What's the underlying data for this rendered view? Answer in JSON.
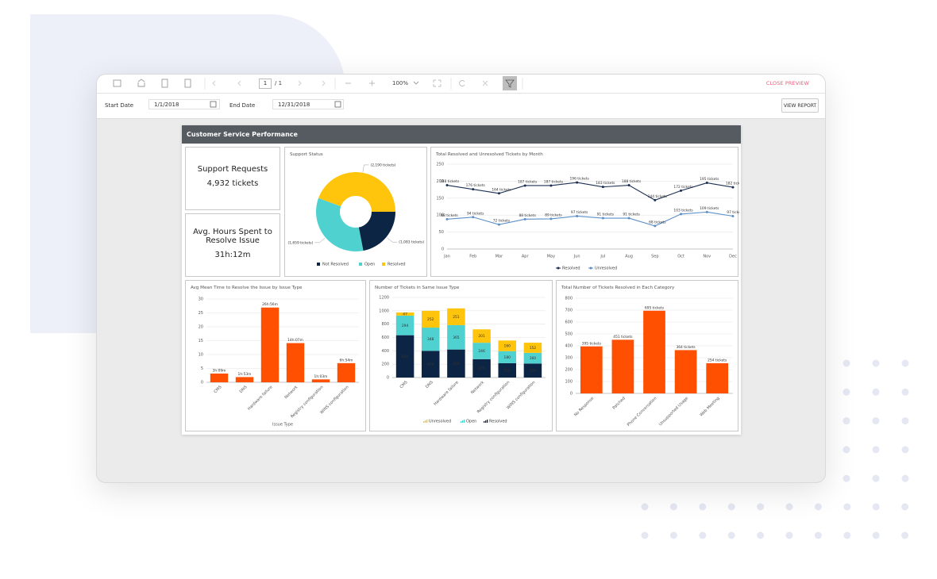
{
  "toolbar": {
    "page": "1",
    "page_count": "/ 1",
    "zoom": "100%",
    "close": "CLOSE PREVIEW"
  },
  "parameters": {
    "start_label": "Start Date",
    "start_value": "1/1/2018",
    "end_label": "End Date",
    "end_value": "12/31/2018",
    "button": "VIEW REPORT"
  },
  "report": {
    "title": "Customer Service Performance",
    "kpis": [
      {
        "label": "Support Requests",
        "value": "4,932 tickets"
      },
      {
        "label": "Avg. Hours Spent to Resolve Issue",
        "value": "31h:12m"
      }
    ]
  },
  "chart_data": [
    {
      "type": "pie",
      "title": "Support Status",
      "categories": [
        "Not Resolved",
        "Open",
        "Resolved"
      ],
      "values": [
        1083,
        1659,
        2190
      ],
      "value_labels": [
        "(1,083 tickets)",
        "(1,659 tickets)",
        "(2,190 tickets)"
      ],
      "colors": [
        "#0d2544",
        "#4fd1d0",
        "#ffc40c"
      ],
      "donut": true
    },
    {
      "type": "line",
      "title": "Total Resolved and Unresolved Tickets by Month",
      "categories": [
        "Jan",
        "Feb",
        "Mar",
        "Apr",
        "May",
        "Jun",
        "Jul",
        "Aug",
        "Sep",
        "Oct",
        "Nov",
        "Dec"
      ],
      "series": [
        {
          "name": "Resolved",
          "color": "#1b2f52",
          "values": [
            188,
            176,
            164,
            187,
            187,
            196,
            183,
            188,
            144,
            172,
            195,
            182
          ],
          "value_labels": [
            "188 tickets",
            "176 tickets",
            "164 tickets",
            "187 tickets",
            "187 tickets",
            "196 tickets",
            "183 tickets",
            "188 tickets",
            "144 tickets",
            "172 tickets",
            "195 tickets",
            "182 tickets"
          ]
        },
        {
          "name": "Unresolved",
          "color": "#5b8fc9",
          "values": [
            88,
            94,
            72,
            88,
            89,
            97,
            91,
            91,
            68,
            103,
            109,
            97
          ],
          "value_labels": [
            "88 tickets",
            "94 tickets",
            "72 tickets",
            "88 tickets",
            "89 tickets",
            "97 tickets",
            "91 tickets",
            "91 tickets",
            "68 tickets",
            "103 tickets",
            "109 tickets",
            "97 tickets"
          ]
        }
      ],
      "ylim": [
        0,
        250
      ],
      "yticks": [
        0,
        50,
        100,
        150,
        200,
        250
      ],
      "grid": true
    },
    {
      "type": "bar",
      "title": "Avg Mean Time to Resolve the Issue by Issue Type",
      "x_label": "Issue Type",
      "categories": [
        "CMS",
        "DNS",
        "Hardware failure",
        "Network",
        "Registry configuration",
        "WINS configuration"
      ],
      "values": [
        3.15,
        1.88,
        26.93,
        14.12,
        1.05,
        6.9
      ],
      "value_labels": [
        "3h:09m",
        "1h:53m",
        "26h:56m",
        "14h:07m",
        "1h:03m",
        "6h:54m"
      ],
      "color": "#ff4f00",
      "ylim": [
        0,
        30
      ],
      "yticks": [
        0,
        5,
        10,
        15,
        20,
        25,
        30
      ],
      "grid": true
    },
    {
      "type": "stacked_bar",
      "title": "Number of Tickets in Same Issue Type",
      "categories": [
        "CMS",
        "DNS",
        "Hardware failure",
        "Network",
        "Registry configuration",
        "WINS configuration"
      ],
      "series": [
        {
          "name": "Unresolved",
          "color": "#ffc40c",
          "values": [
            47,
            252,
            251,
            201,
            160,
            152
          ]
        },
        {
          "name": "Open",
          "color": "#4fd1d0",
          "values": [
            294,
            348,
            365,
            246,
            180,
            160
          ]
        },
        {
          "name": "Resolved",
          "color": "#0d2544",
          "values": [
            634,
            400,
            420,
            275,
            215,
            210
          ]
        }
      ],
      "ylim": [
        0,
        1200
      ],
      "yticks": [
        0,
        200,
        400,
        600,
        800,
        1000,
        1200
      ],
      "grid": true
    },
    {
      "type": "bar",
      "title": "Total Number of Tickets Resolved in Each Category",
      "categories": [
        "No Response",
        "Patched",
        "Phone Conversation",
        "Unsupported Usage",
        "Web Meeting"
      ],
      "values": [
        395,
        451,
        695,
        364,
        254
      ],
      "value_labels": [
        "395 tickets",
        "451 tickets",
        "695 tickets",
        "364 tickets",
        "254 tickets"
      ],
      "color": "#ff4f00",
      "ylim": [
        0,
        800
      ],
      "yticks": [
        0,
        100,
        200,
        300,
        400,
        500,
        600,
        700,
        800
      ],
      "grid": true
    }
  ]
}
